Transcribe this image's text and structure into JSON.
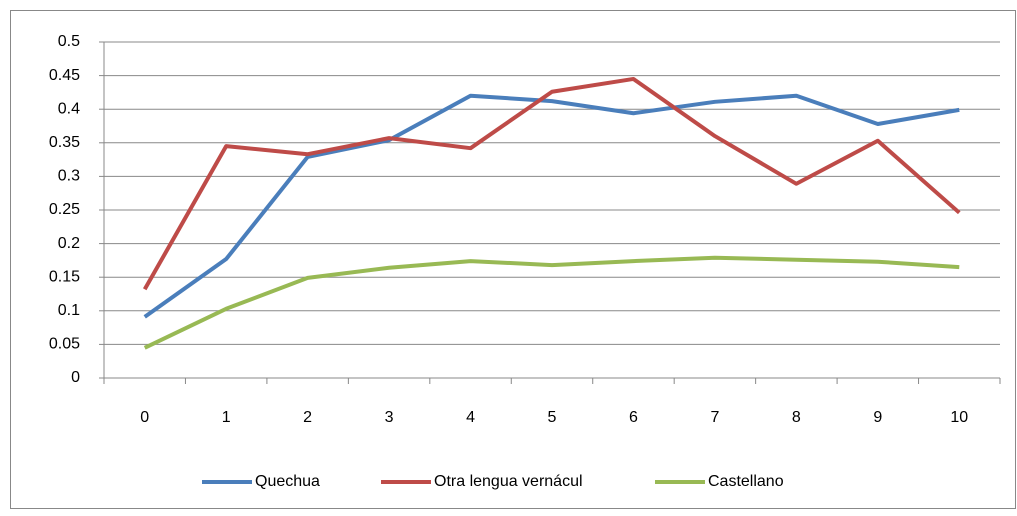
{
  "chart_data": {
    "type": "line",
    "categories": [
      "0",
      "1",
      "2",
      "3",
      "4",
      "5",
      "6",
      "7",
      "8",
      "9",
      "10"
    ],
    "series": [
      {
        "name": "Quechua",
        "color": "#4a7ebb",
        "values": [
          0.091,
          0.177,
          0.329,
          0.354,
          0.42,
          0.412,
          0.394,
          0.411,
          0.42,
          0.378,
          0.399
        ]
      },
      {
        "name": "Otra lengua vernácul",
        "color": "#be4b48",
        "values": [
          0.132,
          0.345,
          0.333,
          0.357,
          0.342,
          0.426,
          0.445,
          0.36,
          0.289,
          0.353,
          0.246
        ]
      },
      {
        "name": "Castellano",
        "color": "#98b954",
        "values": [
          0.045,
          0.103,
          0.149,
          0.164,
          0.174,
          0.168,
          0.174,
          0.179,
          0.176,
          0.173,
          0.165
        ]
      }
    ],
    "ylim": [
      0,
      0.5
    ],
    "yticks": [
      0,
      0.05,
      0.1,
      0.15,
      0.2,
      0.25,
      0.3,
      0.35,
      0.4,
      0.45,
      0.5
    ],
    "grid": true,
    "legend": "bottom"
  }
}
